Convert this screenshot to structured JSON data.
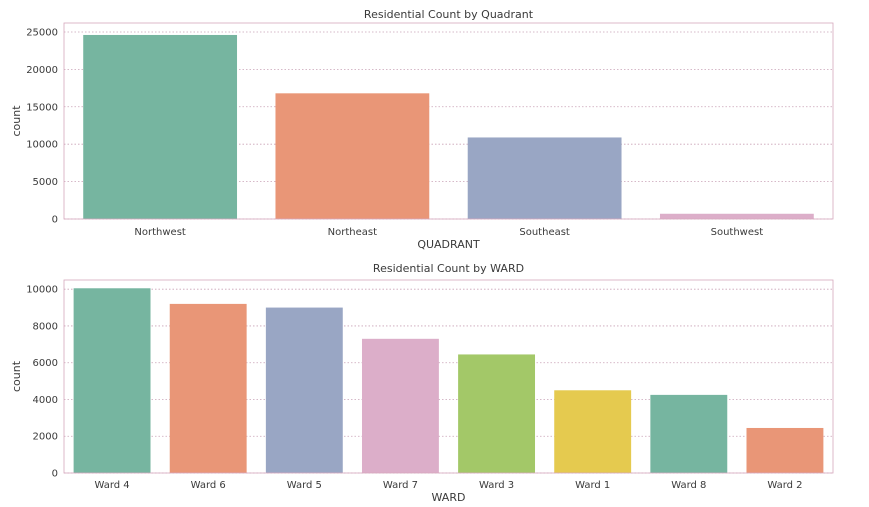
{
  "chart_data": [
    {
      "type": "bar",
      "title": "Residential Count by Quadrant",
      "xlabel": "QUADRANT",
      "ylabel": "count",
      "categories": [
        "Northwest",
        "Northeast",
        "Southeast",
        "Southwest"
      ],
      "values": [
        24600,
        16800,
        10900,
        700
      ],
      "ylim": [
        0,
        26200
      ],
      "yticks": [
        0,
        5000,
        10000,
        15000,
        20000,
        25000
      ],
      "colors": [
        "#76b5a0",
        "#e99677",
        "#99a6c4",
        "#dcaec9"
      ],
      "grid": true
    },
    {
      "type": "bar",
      "title": "Residential Count by WARD",
      "xlabel": "WARD",
      "ylabel": "count",
      "categories": [
        "Ward 4",
        "Ward 6",
        "Ward 5",
        "Ward 7",
        "Ward 3",
        "Ward 1",
        "Ward 8",
        "Ward 2"
      ],
      "values": [
        10050,
        9200,
        9000,
        7300,
        6450,
        4500,
        4250,
        2450
      ],
      "ylim": [
        0,
        10500
      ],
      "yticks": [
        0,
        2000,
        4000,
        6000,
        8000,
        10000
      ],
      "colors": [
        "#76b5a0",
        "#e99677",
        "#99a6c4",
        "#dcaec9",
        "#a3c868",
        "#e5ca4f",
        "#76b5a0",
        "#e99677"
      ],
      "grid": true
    }
  ]
}
